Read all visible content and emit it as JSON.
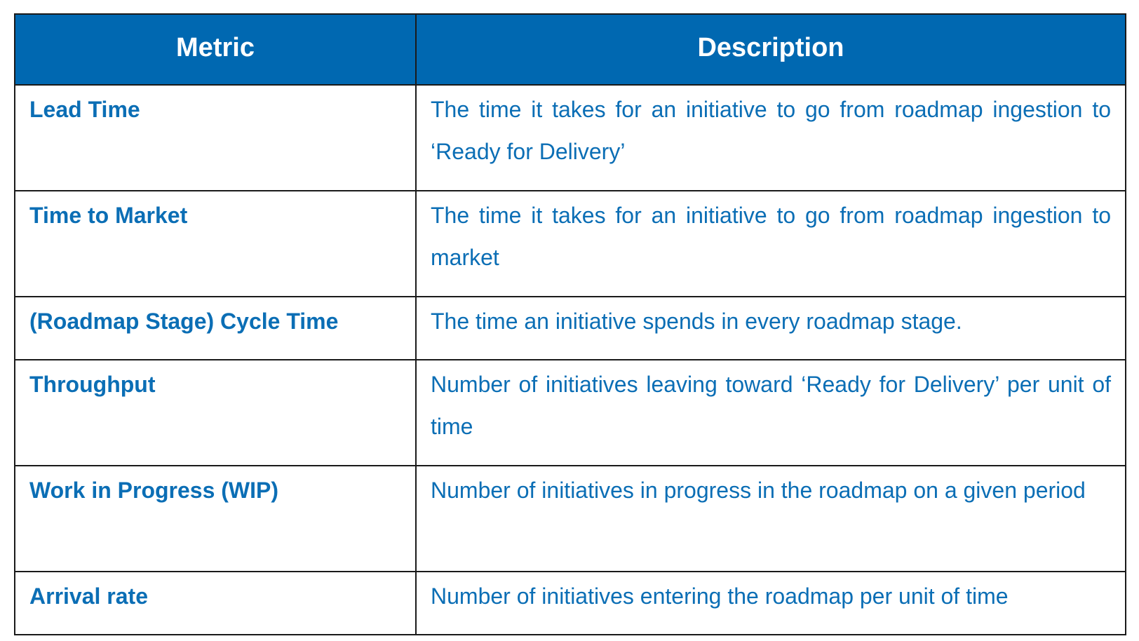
{
  "table": {
    "headers": {
      "metric": "Metric",
      "description": "Description"
    },
    "rows": [
      {
        "metric": "Lead Time",
        "description": "The time it takes for an initiative to go from roadmap ingestion to ‘Ready for Delivery’"
      },
      {
        "metric": "Time to Market",
        "description": "The time it takes for an initiative to go from roadmap ingestion to market"
      },
      {
        "metric": "(Roadmap Stage) Cycle Time",
        "description": "The time an initiative spends in every roadmap stage."
      },
      {
        "metric": "Throughput",
        "description": "Number of initiatives leaving toward ‘Ready for Delivery’ per unit of time"
      },
      {
        "metric": "Work in Progress (WIP)",
        "description": "Number of initiatives in progress in the roadmap on a given period"
      },
      {
        "metric": "Arrival rate",
        "description": "Number of initiatives entering the roadmap per unit of time"
      }
    ]
  },
  "colors": {
    "header_background": "#0068b1",
    "header_text": "#ffffff",
    "body_text": "#0b6eb5",
    "border": "#1a1a1a"
  }
}
